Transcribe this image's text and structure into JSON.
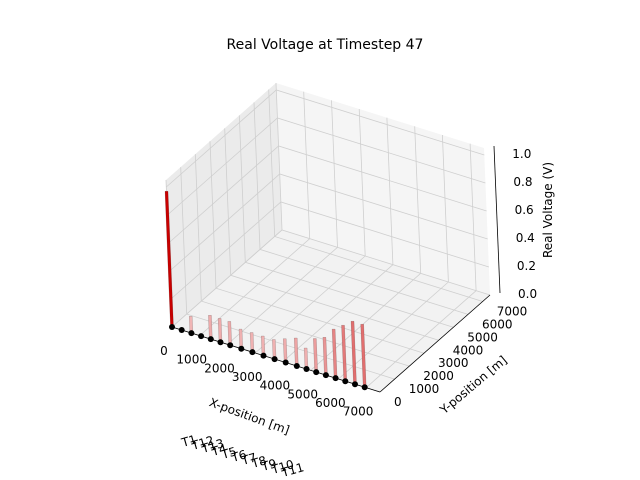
{
  "chart_data": {
    "type": "3d-bar",
    "title": "Real Voltage at Timestep 47",
    "xlabel": "X-position [m]",
    "ylabel": "Y-position [m]",
    "zlabel": "Real Voltage (V)",
    "xlim": [
      0,
      7500
    ],
    "ylim": [
      0,
      7500
    ],
    "zlim": [
      0,
      1.05
    ],
    "xticks": [
      "0",
      "1000",
      "2000",
      "3000",
      "4000",
      "5000",
      "6000",
      "7000"
    ],
    "yticks": [
      "0",
      "1000",
      "2000",
      "3000",
      "4000",
      "5000",
      "6000",
      "7000"
    ],
    "zticks": [
      "0.0",
      "0.2",
      "0.4",
      "0.6",
      "0.8",
      "1.0"
    ],
    "grid": true,
    "nodes": [
      {
        "x": 0,
        "y": 0,
        "v": 0.97
      },
      {
        "x": 350,
        "y": 0,
        "v": 0.0
      },
      {
        "x": 700,
        "y": 0,
        "v": 0.12
      },
      {
        "x": 1050,
        "y": 0,
        "v": 0.0
      },
      {
        "x": 1400,
        "y": 0,
        "v": 0.17
      },
      {
        "x": 1750,
        "y": 0,
        "v": 0.17
      },
      {
        "x": 2100,
        "y": 0,
        "v": 0.17
      },
      {
        "x": 2500,
        "y": 0,
        "v": 0.14
      },
      {
        "x": 2900,
        "y": 0,
        "v": 0.14
      },
      {
        "x": 3300,
        "y": 0,
        "v": 0.14
      },
      {
        "x": 3700,
        "y": 0,
        "v": 0.14
      },
      {
        "x": 4100,
        "y": 0,
        "v": 0.17
      },
      {
        "x": 4500,
        "y": 0,
        "v": 0.2
      },
      {
        "x": 4850,
        "y": 0,
        "v": 0.15
      },
      {
        "x": 5200,
        "y": 0,
        "v": 0.24
      },
      {
        "x": 5550,
        "y": 0,
        "v": 0.27
      },
      {
        "x": 5900,
        "y": 0,
        "v": 0.35
      },
      {
        "x": 6250,
        "y": 0,
        "v": 0.4
      },
      {
        "x": 6600,
        "y": 0,
        "v": 0.45
      },
      {
        "x": 6950,
        "y": 0,
        "v": 0.45
      }
    ],
    "bar_color_max": "#c80000",
    "bar_color_min": "#f6cfcf",
    "node_color": "#000000",
    "overflow_labels": [
      "T1",
      "T12",
      "T13",
      "T4",
      "T5",
      "T6",
      "T7",
      "T8",
      "T9",
      "T10",
      "T11"
    ]
  }
}
